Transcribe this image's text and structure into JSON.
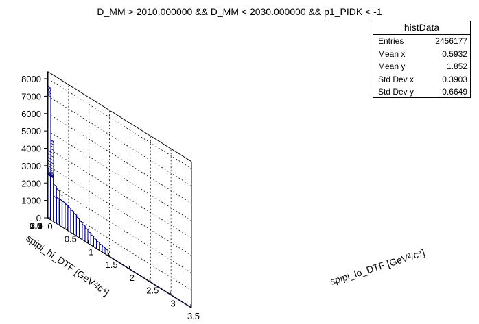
{
  "title": "D_MM > 2010.000000 && D_MM < 2030.000000 && p1_PIDK < -1",
  "stats": {
    "name": "histData",
    "rows": [
      {
        "label": "Entries",
        "value": "2456177"
      },
      {
        "label": "Mean x",
        "value": "0.5932"
      },
      {
        "label": "Mean y",
        "value": "1.852"
      },
      {
        "label": "Std Dev x",
        "value": "0.3903"
      },
      {
        "label": "Std Dev y",
        "value": "0.6649"
      }
    ]
  },
  "colors": {
    "bars": "#000080",
    "axes": "#000000",
    "grid": "#000000",
    "background": "#ffffff"
  },
  "chart_data": {
    "type": "lego3d",
    "title": "D_MM > 2010.000000 && D_MM < 2030.000000 && p1_PIDK < -1",
    "xlabel": "spipi_lo_DTF [GeV²/c⁴]",
    "ylabel": "spipi_hi_DTF [GeV²/c⁴]",
    "xlim": [
      0,
      3.5
    ],
    "ylim": [
      0,
      3.5
    ],
    "zlim": [
      0,
      8400
    ],
    "xticks": [
      "0",
      "0.5",
      "1",
      "1.5",
      "2",
      "2.5",
      "3",
      "3.5"
    ],
    "yticks": [
      "0",
      "0.5",
      "1",
      "1.5",
      "2",
      "2.5",
      "3",
      "3.5"
    ],
    "zticks": [
      "0",
      "1000",
      "2000",
      "3000",
      "4000",
      "5000",
      "6000",
      "7000",
      "8000"
    ],
    "grid": true,
    "nbins": 50,
    "peak": {
      "x": 0.05,
      "y": [
        2.0,
        3.0
      ],
      "z": 7600
    },
    "ridge_lo_x": {
      "x": 0.05,
      "z_range": [
        2500,
        4600
      ]
    },
    "band_y_hi": {
      "y": 3.1,
      "z_range": [
        600,
        2700
      ]
    },
    "plateau": {
      "x_range": [
        0.15,
        1.5
      ],
      "y_range": [
        0.9,
        3.1
      ],
      "z_range": [
        200,
        1500
      ]
    },
    "outside_region": 0
  }
}
